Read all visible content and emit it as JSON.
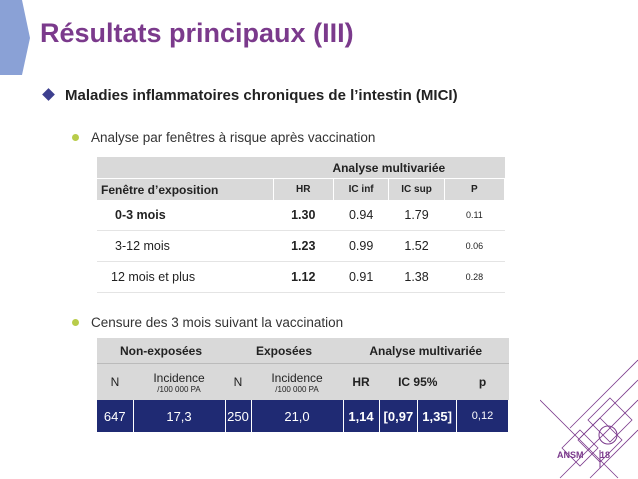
{
  "slide": {
    "title": "Résultats principaux (III)",
    "bullet_main": "Maladies inflammatoires chroniques de l’intestin (MICI)",
    "bullet_a": "Analyse par fenêtres à risque après vaccination",
    "bullet_b": "Censure des 3 mois suivant la vaccination",
    "footer_org": "ANSM",
    "page_number": "18"
  },
  "table1": {
    "group_header": "Analyse multivariée",
    "col_window": "Fenêtre d’exposition",
    "col_hr": "HR",
    "col_ic_inf": "IC inf",
    "col_ic_sup": "IC sup",
    "col_p": "P",
    "rows": [
      {
        "window": "0-3 mois",
        "hr": "1.30",
        "ic_inf": "0.94",
        "ic_sup": "1.79",
        "p": "0.11"
      },
      {
        "window": "3-12 mois",
        "hr": "1.23",
        "ic_inf": "0.99",
        "ic_sup": "1.52",
        "p": "0.06"
      },
      {
        "window": "12 mois et plus",
        "hr": "1.12",
        "ic_inf": "0.91",
        "ic_sup": "1.38",
        "p": "0.28"
      }
    ]
  },
  "table2": {
    "group_non_exposed": "Non-exposées",
    "group_exposed": "Exposées",
    "group_analysis": "Analyse multivariée",
    "col_n": "N",
    "col_incidence": "Incidence",
    "col_incidence_unit": "/100 000 PA",
    "col_hr": "HR",
    "col_ic": "IC 95%",
    "col_p": "p",
    "row": {
      "n_non_exposed": "647",
      "inc_non_exposed": "17,3",
      "n_exposed": "250",
      "inc_exposed": "21,0",
      "hr": "1,14",
      "ic_low": "[0,97",
      "ic_high": "1,35]",
      "p": "0,12"
    }
  },
  "colors": {
    "title": "#7b3a8c",
    "bullet_diamond": "#3d3f8f",
    "bullet_dot": "#b8cc4a",
    "table_header": "#d9d9d9",
    "table_data_row": "#1f2a73"
  }
}
